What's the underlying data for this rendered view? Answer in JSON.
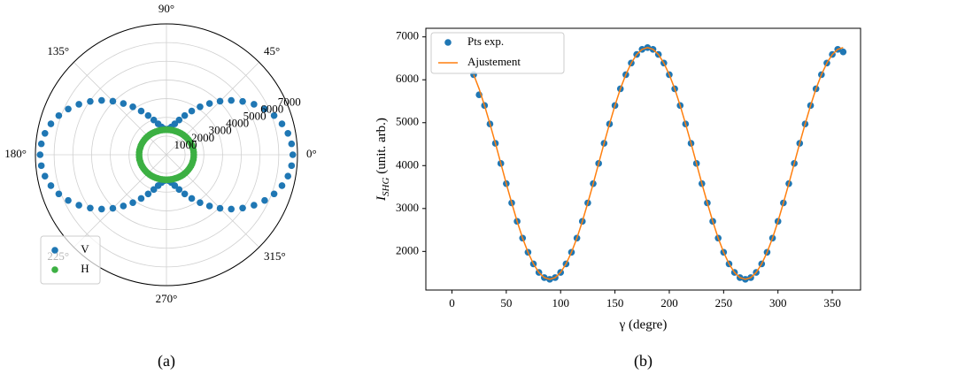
{
  "chart_data": [
    {
      "type": "polar",
      "caption": "(a)",
      "theta": [
        0,
        5,
        10,
        15,
        20,
        25,
        30,
        35,
        40,
        45,
        50,
        55,
        60,
        65,
        70,
        75,
        80,
        85,
        90,
        95,
        100,
        105,
        110,
        115,
        120,
        125,
        130,
        135,
        140,
        145,
        150,
        155,
        160,
        165,
        170,
        175,
        180,
        185,
        190,
        195,
        200,
        205,
        210,
        215,
        220,
        225,
        230,
        235,
        240,
        245,
        250,
        255,
        260,
        265,
        270,
        275,
        280,
        285,
        290,
        295,
        300,
        305,
        310,
        315,
        320,
        325,
        330,
        335,
        340,
        345,
        350,
        355
      ],
      "series": [
        {
          "name": "V",
          "color": "#1f77b4",
          "values": [
            6750,
            6710,
            6590,
            6390,
            6120,
            5790,
            5400,
            4970,
            4520,
            4050,
            3580,
            3130,
            2700,
            2310,
            1980,
            1710,
            1510,
            1390,
            1350,
            1390,
            1510,
            1710,
            1980,
            2310,
            2700,
            3130,
            3580,
            4050,
            4520,
            4970,
            5400,
            5790,
            6120,
            6390,
            6590,
            6710,
            6750,
            6710,
            6590,
            6390,
            6120,
            5790,
            5400,
            4970,
            4520,
            4050,
            3580,
            3130,
            2700,
            2310,
            1980,
            1710,
            1510,
            1390,
            1350,
            1390,
            1510,
            1710,
            1980,
            2310,
            2700,
            3130,
            3580,
            4050,
            4520,
            4970,
            5400,
            5790,
            6120,
            6390,
            6590,
            6710
          ]
        },
        {
          "name": "H",
          "color": "#3cb043",
          "values": [
            1460,
            1460,
            1460,
            1450,
            1450,
            1440,
            1430,
            1420,
            1410,
            1400,
            1390,
            1380,
            1370,
            1360,
            1350,
            1350,
            1340,
            1340,
            1340,
            1340,
            1340,
            1350,
            1350,
            1360,
            1370,
            1380,
            1390,
            1400,
            1410,
            1420,
            1430,
            1440,
            1450,
            1450,
            1460,
            1460,
            1460,
            1460,
            1460,
            1450,
            1450,
            1440,
            1430,
            1420,
            1410,
            1400,
            1390,
            1380,
            1370,
            1360,
            1350,
            1350,
            1340,
            1340,
            1340,
            1340,
            1340,
            1350,
            1350,
            1360,
            1370,
            1380,
            1390,
            1400,
            1410,
            1420,
            1430,
            1440,
            1450,
            1450,
            1460,
            1460
          ]
        }
      ],
      "rlim": [
        0,
        7000
      ],
      "rticks": [
        1000,
        2000,
        3000,
        4000,
        5000,
        6000,
        7000
      ],
      "thetaticks": [
        {
          "value": 0,
          "label": "0°"
        },
        {
          "value": 45,
          "label": "45°"
        },
        {
          "value": 90,
          "label": "90°"
        },
        {
          "value": 135,
          "label": "135°"
        },
        {
          "value": 180,
          "label": "180°"
        },
        {
          "value": 225,
          "label": "225°"
        },
        {
          "value": 270,
          "label": "270°"
        },
        {
          "value": 315,
          "label": "315°"
        }
      ],
      "grid": true,
      "legend": "lower left"
    },
    {
      "type": "line",
      "caption": "(b)",
      "xlabel": "γ (degre)",
      "ylabel": [
        "I",
        "SHG",
        " (unit. arb.)"
      ],
      "series": [
        {
          "name": "Pts exp.",
          "style": "markers",
          "color": "#1f77b4",
          "x": [
            20,
            25,
            30,
            35,
            40,
            45,
            50,
            55,
            60,
            65,
            70,
            75,
            80,
            85,
            90,
            95,
            100,
            105,
            110,
            115,
            120,
            125,
            130,
            135,
            140,
            145,
            150,
            155,
            160,
            165,
            170,
            175,
            180,
            185,
            190,
            195,
            200,
            205,
            210,
            215,
            220,
            225,
            230,
            235,
            240,
            245,
            250,
            255,
            260,
            265,
            270,
            275,
            280,
            285,
            290,
            295,
            300,
            305,
            310,
            315,
            320,
            325,
            330,
            335,
            340,
            345,
            350,
            355,
            360
          ],
          "values": [
            6120,
            5650,
            5400,
            4970,
            4520,
            4050,
            3580,
            3130,
            2700,
            2310,
            1980,
            1710,
            1510,
            1390,
            1350,
            1390,
            1510,
            1710,
            1980,
            2310,
            2700,
            3130,
            3580,
            4050,
            4520,
            4970,
            5400,
            5790,
            6120,
            6390,
            6590,
            6710,
            6750,
            6710,
            6590,
            6390,
            6120,
            5790,
            5400,
            4970,
            4520,
            4050,
            3580,
            3130,
            2700,
            2310,
            1980,
            1710,
            1510,
            1390,
            1350,
            1390,
            1510,
            1710,
            1980,
            2310,
            2700,
            3130,
            3580,
            4050,
            4520,
            4970,
            5400,
            5790,
            6120,
            6390,
            6590,
            6710,
            6650
          ]
        },
        {
          "name": "Ajustement",
          "style": "line",
          "color": "#ff7f0e",
          "x": [
            20,
            25,
            30,
            35,
            40,
            45,
            50,
            55,
            60,
            65,
            70,
            75,
            80,
            85,
            90,
            95,
            100,
            105,
            110,
            115,
            120,
            125,
            130,
            135,
            140,
            145,
            150,
            155,
            160,
            165,
            170,
            175,
            180,
            185,
            190,
            195,
            200,
            205,
            210,
            215,
            220,
            225,
            230,
            235,
            240,
            245,
            250,
            255,
            260,
            265,
            270,
            275,
            280,
            285,
            290,
            295,
            300,
            305,
            310,
            315,
            320,
            325,
            330,
            335,
            340,
            345,
            350,
            355,
            360
          ],
          "values": [
            6120,
            5790,
            5400,
            4970,
            4520,
            4050,
            3580,
            3130,
            2700,
            2310,
            1980,
            1710,
            1510,
            1390,
            1350,
            1390,
            1510,
            1710,
            1980,
            2310,
            2700,
            3130,
            3580,
            4050,
            4520,
            4970,
            5400,
            5790,
            6120,
            6390,
            6590,
            6710,
            6750,
            6710,
            6590,
            6390,
            6120,
            5790,
            5400,
            4970,
            4520,
            4050,
            3580,
            3130,
            2700,
            2310,
            1980,
            1710,
            1510,
            1390,
            1350,
            1390,
            1510,
            1710,
            1980,
            2310,
            2700,
            3130,
            3580,
            4050,
            4520,
            4970,
            5400,
            5790,
            6120,
            6390,
            6590,
            6710,
            6750
          ]
        }
      ],
      "xlim": [
        -24,
        376
      ],
      "ylim": [
        1100,
        7200
      ],
      "xticks": [
        0,
        50,
        100,
        150,
        200,
        250,
        300,
        350
      ],
      "yticks": [
        2000,
        3000,
        4000,
        5000,
        6000,
        7000
      ],
      "grid": false,
      "legend": "upper left"
    }
  ]
}
